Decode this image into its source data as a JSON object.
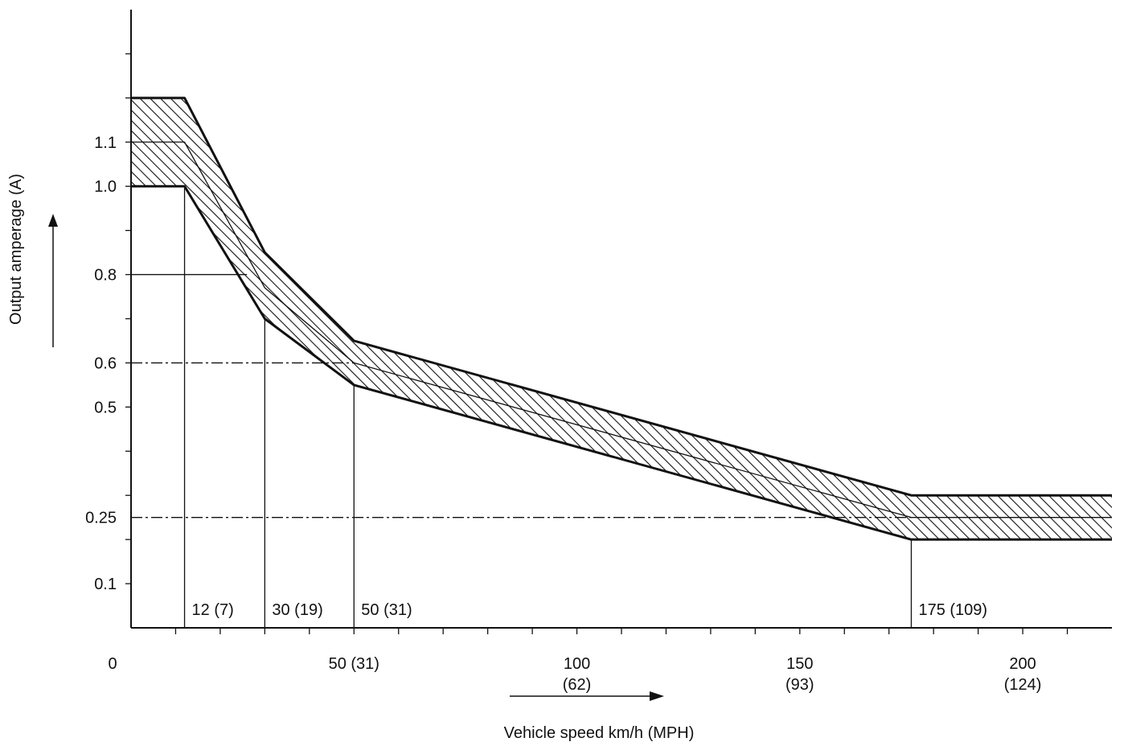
{
  "chart_data": {
    "type": "area",
    "title": "",
    "xlabel": "Vehicle speed  km/h (MPH)",
    "ylabel": "Output amperage (A)",
    "xlim": [
      0,
      220
    ],
    "ylim": [
      0,
      1.4
    ],
    "x_ticks": [
      {
        "value": 0,
        "line1": "0",
        "line2": ""
      },
      {
        "value": 50,
        "line1": "50 (31)",
        "line2": ""
      },
      {
        "value": 100,
        "line1": "100",
        "line2": "(62)"
      },
      {
        "value": 150,
        "line1": "150",
        "line2": "(93)"
      },
      {
        "value": 200,
        "line1": "200",
        "line2": "(124)"
      }
    ],
    "y_ticks": [
      {
        "value": 1.1,
        "label": "1.1"
      },
      {
        "value": 1.0,
        "label": "1.0"
      },
      {
        "value": 0.8,
        "label": "0.8"
      },
      {
        "value": 0.6,
        "label": "0.6"
      },
      {
        "value": 0.5,
        "label": "0.5"
      },
      {
        "value": 0.25,
        "label": "0.25"
      },
      {
        "value": 0.1,
        "label": "0.1"
      }
    ],
    "series": [
      {
        "x": [
          0,
          12,
          30,
          50,
          175,
          220
        ],
        "y": [
          1.2,
          1.2,
          0.85,
          0.65,
          0.3,
          0.3
        ]
      },
      {
        "x": [
          0,
          12,
          30,
          50,
          175,
          220
        ],
        "y": [
          1.1,
          1.1,
          0.77,
          0.6,
          0.25,
          0.25
        ]
      },
      {
        "x": [
          0,
          12,
          30,
          50,
          175,
          220
        ],
        "y": [
          1.0,
          1.0,
          0.7,
          0.55,
          0.2,
          0.2
        ]
      }
    ],
    "reference_lines": [
      {
        "type": "vertical",
        "x": 12,
        "label": "12 (7)"
      },
      {
        "type": "vertical",
        "x": 30,
        "label": "30 (19)"
      },
      {
        "type": "vertical",
        "x": 50,
        "label": "50 (31)"
      },
      {
        "type": "vertical",
        "x": 175,
        "label": "175 (109)"
      },
      {
        "type": "horizontal",
        "y": 0.8
      },
      {
        "type": "horizontal",
        "y": 0.6
      },
      {
        "type": "horizontal",
        "y": 0.25
      }
    ],
    "grid": false,
    "legend": "none"
  }
}
